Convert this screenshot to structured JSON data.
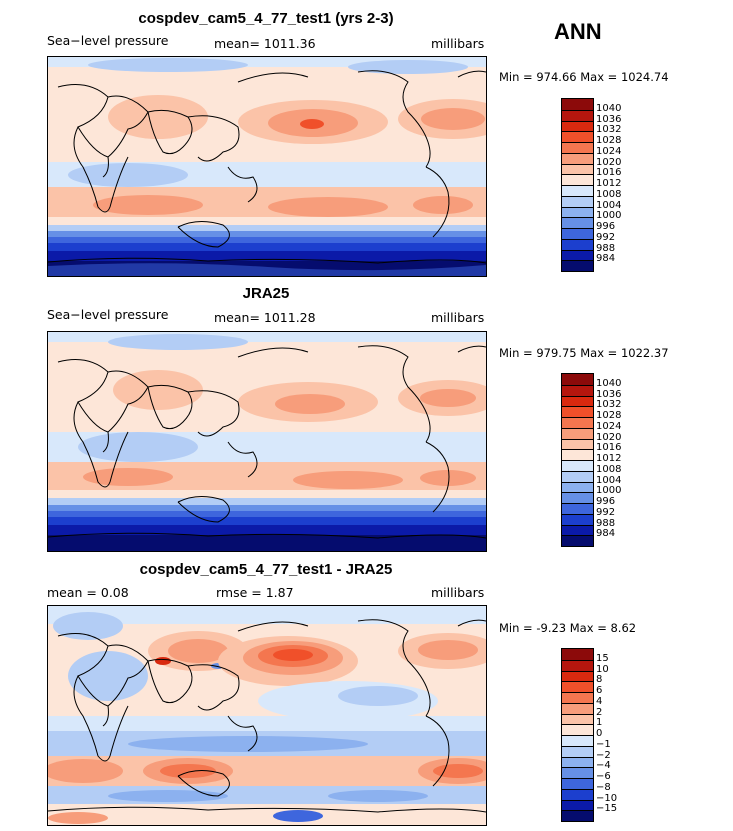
{
  "season": "ANN",
  "panels": [
    {
      "title": "cospdev_cam5_4_77_test1 (yrs 2-3)",
      "left_label": "Sea−level pressure",
      "center_label": "mean= 1011.36",
      "units": "millibars",
      "minmax": "Min = 974.66 Max = 1024.74",
      "colorbar_labels": [
        "1040",
        "1036",
        "1032",
        "1028",
        "1024",
        "1020",
        "1016",
        "1012",
        "1008",
        "1004",
        "1000",
        "996",
        "992",
        "988",
        "984"
      ],
      "colorbar_colors": [
        "#8c0a0a",
        "#b5160e",
        "#d9290f",
        "#f0502a",
        "#f4764f",
        "#f79d7b",
        "#fbc3a8",
        "#fde6d8",
        "#d8e8fb",
        "#b3cdf5",
        "#8cb1ef",
        "#6690e6",
        "#3e66dd",
        "#1c3fce",
        "#0b1aa8",
        "#050c6e"
      ]
    },
    {
      "title": "JRA25",
      "left_label": "Sea−level pressure",
      "center_label": "mean= 1011.28",
      "units": "millibars",
      "minmax": "Min = 979.75 Max = 1022.37",
      "colorbar_labels": [
        "1040",
        "1036",
        "1032",
        "1028",
        "1024",
        "1020",
        "1016",
        "1012",
        "1008",
        "1004",
        "1000",
        "996",
        "992",
        "988",
        "984"
      ],
      "colorbar_colors": [
        "#8c0a0a",
        "#b5160e",
        "#d9290f",
        "#f0502a",
        "#f4764f",
        "#f79d7b",
        "#fbc3a8",
        "#fde6d8",
        "#d8e8fb",
        "#b3cdf5",
        "#8cb1ef",
        "#6690e6",
        "#3e66dd",
        "#1c3fce",
        "#0b1aa8",
        "#050c6e"
      ]
    },
    {
      "title": "cospdev_cam5_4_77_test1 - JRA25",
      "left_label": "mean =    0.08",
      "center_label": "rmse =    1.87",
      "units": "millibars",
      "minmax": "Min =   -9.23 Max =    8.62",
      "colorbar_labels": [
        "15",
        "10",
        "8",
        "6",
        "4",
        "2",
        "1",
        "0",
        "−1",
        "−2",
        "−4",
        "−6",
        "−8",
        "−10",
        "−15"
      ],
      "colorbar_colors": [
        "#8c0a0a",
        "#b5160e",
        "#d9290f",
        "#f0502a",
        "#f4764f",
        "#f79d7b",
        "#fbc3a8",
        "#fde6d8",
        "#d8e8fb",
        "#b3cdf5",
        "#8cb1ef",
        "#6690e6",
        "#3e66dd",
        "#1c3fce",
        "#0b1aa8",
        "#050c6e"
      ]
    }
  ]
}
